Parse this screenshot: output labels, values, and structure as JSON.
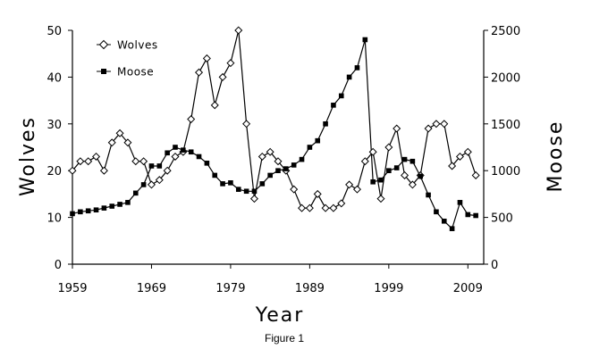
{
  "chart_data": {
    "type": "line",
    "caption": "Figure 1",
    "xlabel": "Year",
    "ylabel_left": "Wolves",
    "ylabel_right": "Moose",
    "xlim": [
      1959,
      2011
    ],
    "x_ticks": [
      1959,
      1969,
      1979,
      1989,
      1999,
      2009
    ],
    "y_left_lim": [
      0,
      50
    ],
    "y_left_ticks": [
      0,
      10,
      20,
      30,
      40,
      50
    ],
    "y_right_lim": [
      0,
      2500
    ],
    "y_right_ticks": [
      0,
      500,
      1000,
      1500,
      2000,
      2500
    ],
    "grid": false,
    "legend_position": "top-left",
    "series": [
      {
        "name": "Wolves",
        "axis": "left",
        "marker": "diamond",
        "x": [
          1959,
          1960,
          1961,
          1962,
          1963,
          1964,
          1965,
          1966,
          1967,
          1968,
          1969,
          1970,
          1971,
          1972,
          1973,
          1974,
          1975,
          1976,
          1977,
          1978,
          1979,
          1980,
          1981,
          1982,
          1983,
          1984,
          1985,
          1986,
          1987,
          1988,
          1989,
          1990,
          1991,
          1992,
          1993,
          1994,
          1995,
          1996,
          1997,
          1998,
          1999,
          2000,
          2001,
          2002,
          2003,
          2004,
          2005,
          2006,
          2007,
          2008,
          2009,
          2010
        ],
        "values": [
          20,
          22,
          22,
          23,
          20,
          26,
          28,
          26,
          22,
          22,
          17,
          18,
          20,
          23,
          24,
          31,
          41,
          44,
          34,
          40,
          43,
          50,
          30,
          14,
          23,
          24,
          22,
          20,
          16,
          12,
          12,
          15,
          12,
          12,
          13,
          17,
          16,
          22,
          24,
          14,
          25,
          29,
          19,
          17,
          19,
          29,
          30,
          30,
          21,
          23,
          24,
          19
        ]
      },
      {
        "name": "Moose",
        "axis": "right",
        "marker": "square",
        "x": [
          1959,
          1960,
          1961,
          1962,
          1963,
          1964,
          1965,
          1966,
          1967,
          1968,
          1969,
          1970,
          1971,
          1972,
          1973,
          1974,
          1975,
          1976,
          1977,
          1978,
          1979,
          1980,
          1981,
          1982,
          1983,
          1984,
          1985,
          1986,
          1987,
          1988,
          1989,
          1990,
          1991,
          1992,
          1993,
          1994,
          1995,
          1996,
          1997,
          1998,
          1999,
          2000,
          2001,
          2002,
          2003,
          2004,
          2005,
          2006,
          2007,
          2008,
          2009,
          2010
        ],
        "values": [
          540,
          560,
          570,
          580,
          600,
          620,
          640,
          660,
          760,
          850,
          1050,
          1050,
          1190,
          1250,
          1220,
          1200,
          1150,
          1080,
          950,
          860,
          870,
          800,
          780,
          780,
          860,
          950,
          1000,
          1020,
          1060,
          1120,
          1250,
          1320,
          1500,
          1700,
          1800,
          2000,
          2100,
          2400,
          880,
          900,
          1000,
          1030,
          1120,
          1100,
          940,
          740,
          560,
          460,
          380,
          660,
          530,
          520
        ]
      }
    ]
  }
}
